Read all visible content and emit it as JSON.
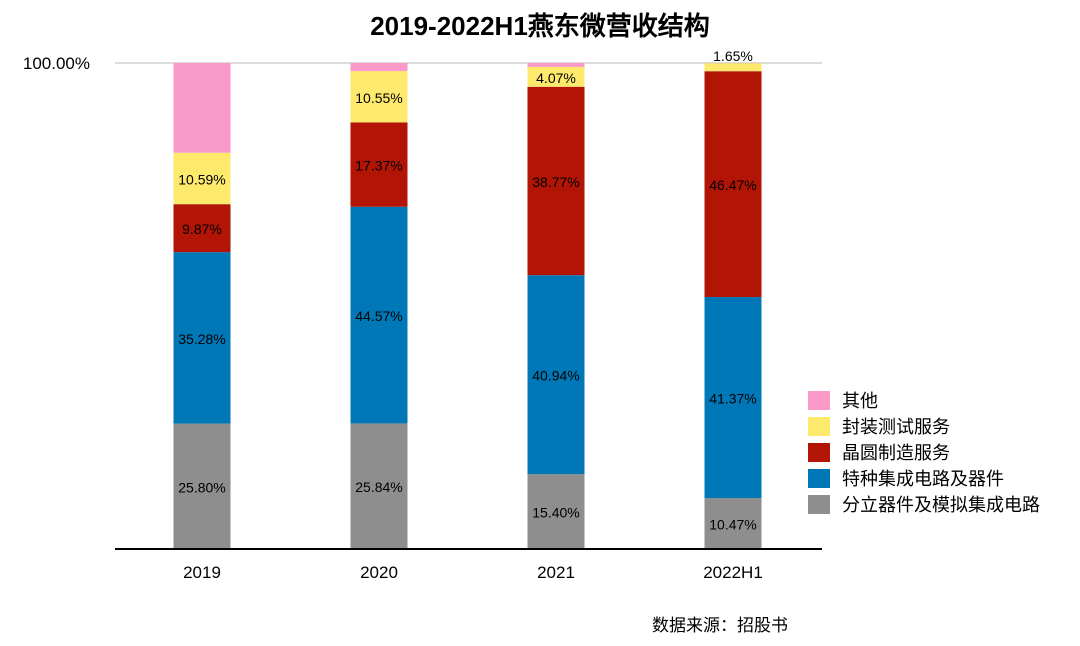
{
  "title": "2019-2022H1燕东微营收结构",
  "source": "数据来源：招股书",
  "chart_data": {
    "type": "bar",
    "stacked": true,
    "title": "2019-2022H1燕东微营收结构",
    "categories": [
      "2019",
      "2020",
      "2021",
      "2022H1"
    ],
    "ylim": [
      0,
      100
    ],
    "ytick_label": "100.00%",
    "series": [
      {
        "name": "分立器件及模拟集成电路",
        "color": "#8e8e8e",
        "values": [
          25.8,
          25.84,
          15.4,
          10.47
        ],
        "labels": [
          "25.80%",
          "25.84%",
          "15.40%",
          "10.47%"
        ]
      },
      {
        "name": "特种集成电路及器件",
        "color": "#0078b8",
        "values": [
          35.28,
          44.57,
          40.94,
          41.37
        ],
        "labels": [
          "35.28%",
          "44.57%",
          "40.94%",
          "41.37%"
        ]
      },
      {
        "name": "晶圆制造服务",
        "color": "#b21405",
        "values": [
          9.87,
          17.37,
          38.77,
          46.47
        ],
        "labels": [
          "9.87%",
          "17.37%",
          "38.77%",
          "46.47%"
        ]
      },
      {
        "name": "封装测试服务",
        "color": "#fde96b",
        "values": [
          10.59,
          10.55,
          4.07,
          1.65
        ],
        "labels": [
          "10.59%",
          "10.55%",
          "4.07%",
          "1.65%"
        ]
      },
      {
        "name": "其他",
        "color": "#fa9ac8",
        "values": [
          18.46,
          1.67,
          0.82,
          0.04
        ],
        "labels": [
          "",
          "",
          "",
          ""
        ]
      }
    ],
    "legend_order": [
      "其他",
      "封装测试服务",
      "晶圆制造服务",
      "特种集成电路及器件",
      "分立器件及模拟集成电路"
    ],
    "legend_position": "right"
  }
}
